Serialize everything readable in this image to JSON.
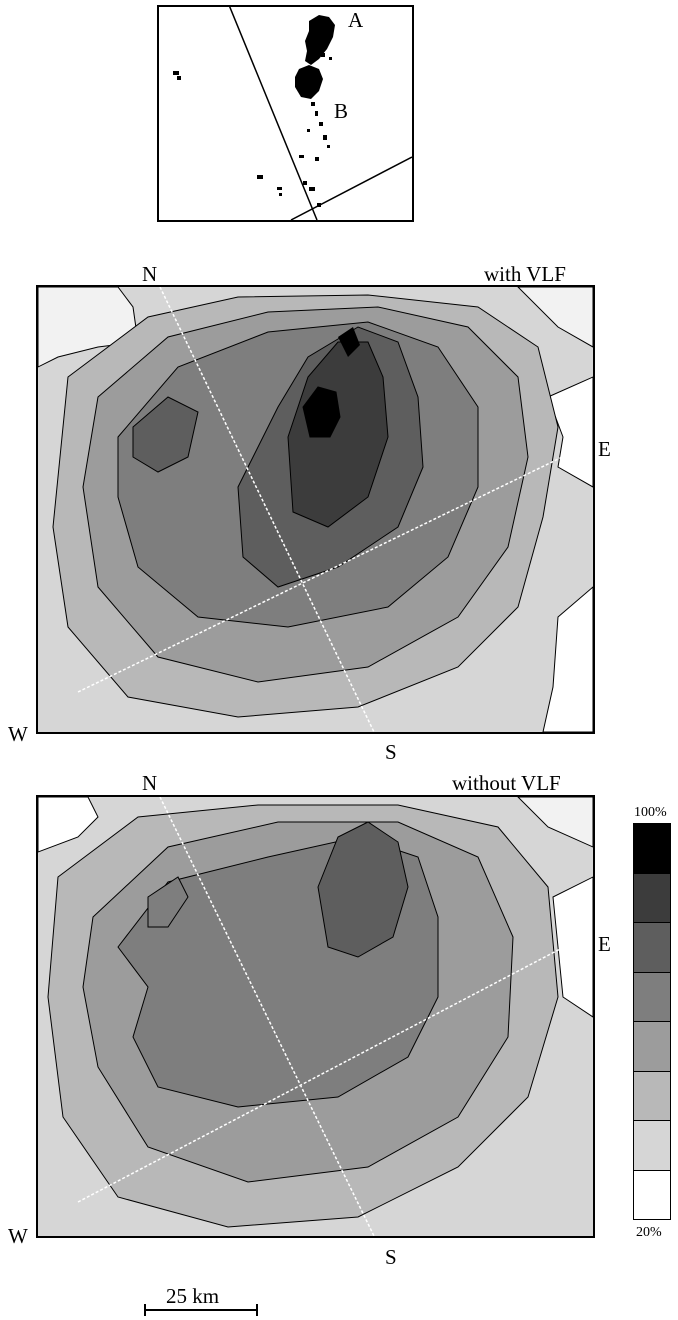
{
  "inset": {
    "label_a": "A",
    "label_b": "B"
  },
  "map_top": {
    "title": "with VLF",
    "dir_n": "N",
    "dir_e": "E",
    "dir_s": "S",
    "dir_w": "W"
  },
  "map_bottom": {
    "title": "without VLF",
    "dir_n": "N",
    "dir_e": "E",
    "dir_s": "S",
    "dir_w": "W"
  },
  "legend": {
    "max_label": "100%",
    "min_label": "20%",
    "levels": [
      "#000000",
      "#3c3c3c",
      "#5e5e5e",
      "#7e7e7e",
      "#9c9c9c",
      "#b8b8b8",
      "#d6d6d6",
      "#ffffff"
    ]
  },
  "scale_bar": {
    "label": "25 km"
  }
}
